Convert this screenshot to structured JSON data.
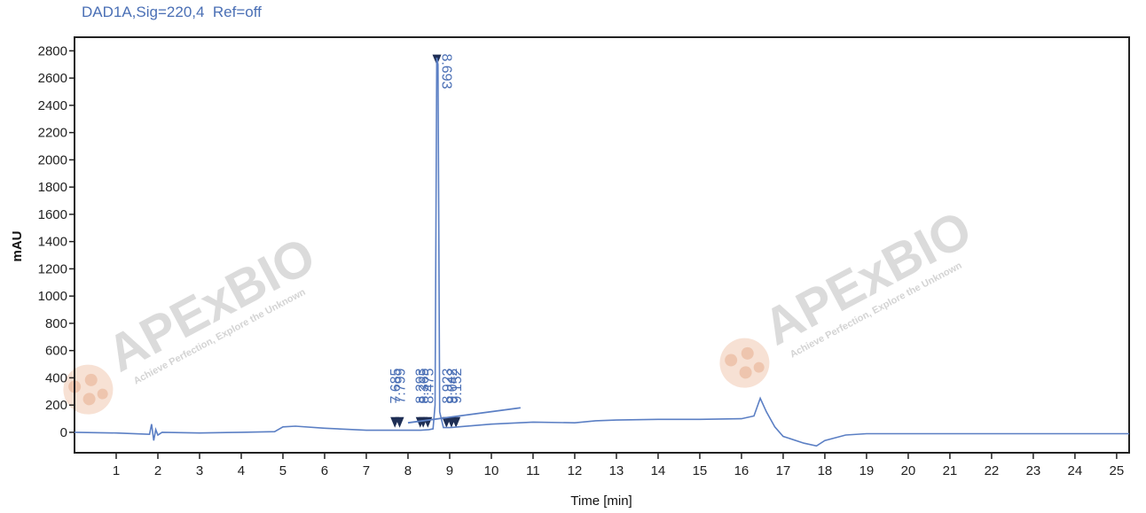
{
  "signal_title": "DAD1A,Sig=220,4  Ref=off",
  "watermark": {
    "brand": "APExBIO",
    "tagline": "Achieve Perfection, Explore the Unknown"
  },
  "colors": {
    "trace": "#5b7fc4",
    "label": "#4a6fb5",
    "axis": "#222222",
    "watermark": "#c9c9c9",
    "watermark_accent": "#f0c9b0"
  },
  "chart_data": {
    "type": "line",
    "title": "DAD1A,Sig=220,4  Ref=off",
    "xlabel": "Time [min]",
    "ylabel": "mAU",
    "xlim": [
      0,
      25.3
    ],
    "ylim": [
      -150,
      2900
    ],
    "x_ticks": [
      1,
      2,
      3,
      4,
      5,
      6,
      7,
      8,
      9,
      10,
      11,
      12,
      13,
      14,
      15,
      16,
      17,
      18,
      19,
      20,
      21,
      22,
      23,
      24,
      25
    ],
    "y_ticks": [
      0,
      200,
      400,
      600,
      800,
      1000,
      1200,
      1400,
      1600,
      1800,
      2000,
      2200,
      2400,
      2600,
      2800
    ],
    "series": [
      {
        "x": [
          0,
          1.0,
          1.8,
          1.85,
          1.9,
          1.95,
          2.0,
          2.1,
          3.0,
          4.0,
          4.8,
          5.0,
          5.3,
          6.0,
          7.0,
          7.68,
          7.8,
          8.3,
          8.5,
          8.6,
          8.65,
          8.69,
          8.72,
          8.76,
          8.85,
          9.0,
          9.2,
          10.0,
          11.0,
          12.0,
          12.5,
          13.0,
          14.0,
          15.0,
          16.0,
          16.3,
          16.45,
          16.6,
          16.8,
          17.0,
          17.5,
          17.8,
          18.0,
          18.5,
          19.0,
          20.0,
          22.0,
          24.0,
          25.0,
          25.3
        ],
        "y": [
          0,
          -5,
          -15,
          60,
          -60,
          20,
          -20,
          0,
          -5,
          0,
          5,
          40,
          45,
          30,
          15,
          15,
          15,
          15,
          20,
          25,
          200,
          2750,
          2700,
          150,
          35,
          35,
          40,
          60,
          75,
          70,
          85,
          90,
          95,
          95,
          100,
          120,
          250,
          150,
          40,
          -30,
          -80,
          -100,
          -60,
          -20,
          -10,
          -10,
          -10,
          -10,
          -10,
          -10
        ]
      }
    ],
    "peak_labels": [
      "7.685",
      "7.799",
      "8.293",
      "8.365",
      "8.475",
      "8.693",
      "8.923",
      "9.042",
      "9.152"
    ],
    "peak_times": [
      7.685,
      7.799,
      8.293,
      8.365,
      8.475,
      8.693,
      8.923,
      9.042,
      9.152
    ],
    "grid": false,
    "legend": "none"
  }
}
